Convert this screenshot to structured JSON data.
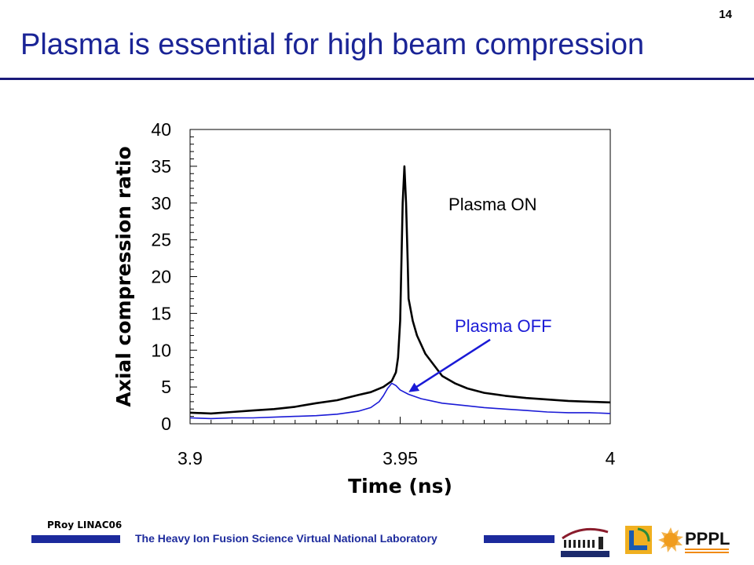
{
  "slide": {
    "number": "14",
    "title": "Plasma is essential for high beam compression"
  },
  "footer": {
    "author": "PRoy LINAC06",
    "lab_name": "The Heavy Ion Fusion Science Virtual National Laboratory",
    "logos": [
      "berkeley-lab-logo",
      "llnl-logo",
      "pppl-logo"
    ],
    "pppl_text": "PPPL"
  },
  "colors": {
    "title": "#1a2496",
    "plasma_on": "#000000",
    "plasma_off": "#1a1ad6",
    "footer_bar": "#1c2a9c"
  },
  "chart_data": {
    "type": "line",
    "xlabel": "Time (ns)",
    "ylabel": "Axial compression ratio",
    "xlim": [
      3.9,
      4.0
    ],
    "ylim": [
      0,
      40
    ],
    "x_ticks": [
      "3.9",
      "3.95",
      "4"
    ],
    "y_ticks": [
      "0",
      "5",
      "10",
      "15",
      "20",
      "25",
      "30",
      "35",
      "40"
    ],
    "grid": false,
    "series": [
      {
        "name": "Plasma ON",
        "color": "#000000",
        "x": [
          3.9,
          3.905,
          3.91,
          3.915,
          3.92,
          3.925,
          3.93,
          3.935,
          3.94,
          3.943,
          3.946,
          3.948,
          3.949,
          3.9495,
          3.95,
          3.9503,
          3.9506,
          3.951,
          3.9514,
          3.9518,
          3.952,
          3.953,
          3.954,
          3.956,
          3.958,
          3.96,
          3.963,
          3.966,
          3.97,
          3.975,
          3.98,
          3.985,
          3.99,
          3.995,
          4.0
        ],
        "y": [
          1.5,
          1.4,
          1.6,
          1.8,
          2.0,
          2.3,
          2.8,
          3.2,
          3.9,
          4.3,
          5.0,
          5.8,
          7.0,
          9.0,
          14.0,
          22.0,
          30.0,
          35.0,
          30.0,
          22.0,
          17.0,
          14.0,
          12.0,
          9.5,
          8.0,
          6.5,
          5.5,
          4.8,
          4.2,
          3.8,
          3.5,
          3.3,
          3.1,
          3.0,
          2.9
        ]
      },
      {
        "name": "Plasma OFF",
        "color": "#1a1ad6",
        "x": [
          3.9,
          3.905,
          3.91,
          3.915,
          3.92,
          3.925,
          3.93,
          3.935,
          3.94,
          3.943,
          3.945,
          3.946,
          3.947,
          3.948,
          3.949,
          3.95,
          3.952,
          3.955,
          3.96,
          3.965,
          3.97,
          3.975,
          3.98,
          3.985,
          3.99,
          3.995,
          4.0
        ],
        "y": [
          0.8,
          0.7,
          0.8,
          0.8,
          0.9,
          1.0,
          1.1,
          1.3,
          1.7,
          2.2,
          3.0,
          3.8,
          4.8,
          5.5,
          5.2,
          4.6,
          4.0,
          3.4,
          2.8,
          2.5,
          2.2,
          2.0,
          1.8,
          1.6,
          1.5,
          1.5,
          1.4
        ]
      }
    ],
    "annotations": [
      {
        "text": "Plasma ON",
        "x": 3.9615,
        "y": 29
      },
      {
        "text": "Plasma OFF",
        "x": 3.963,
        "y": 12.5,
        "arrow_to": [
          3.952,
          4.3
        ]
      }
    ]
  }
}
